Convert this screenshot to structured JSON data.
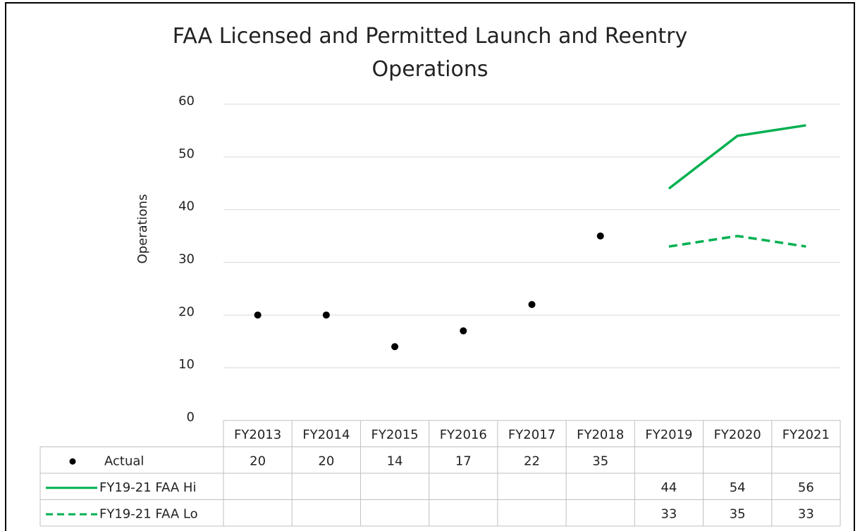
{
  "chart_data": {
    "type": "line",
    "title": "FAA Licensed and Permitted Launch and Reentry Operations",
    "y_label": "Operations",
    "categories": [
      "FY2013",
      "FY2014",
      "FY2015",
      "FY2016",
      "FY2017",
      "FY2018",
      "FY2019",
      "FY2020",
      "FY2021"
    ],
    "series": [
      {
        "name": "Actual",
        "color": "#000000",
        "line_style": "none",
        "marker": true,
        "values": [
          20,
          20,
          14,
          17,
          22,
          35,
          null,
          null,
          null
        ]
      },
      {
        "name": "FY19-21 FAA Hi",
        "color": "#00b050",
        "line_style": "solid",
        "marker": false,
        "values": [
          null,
          null,
          null,
          null,
          null,
          null,
          44,
          54,
          56
        ]
      },
      {
        "name": "FY19-21 FAA Lo",
        "color": "#00b050",
        "line_style": "dashed",
        "marker": false,
        "values": [
          null,
          null,
          null,
          null,
          null,
          null,
          33,
          35,
          33
        ]
      }
    ],
    "ylim": [
      0,
      60
    ],
    "yticks": [
      0,
      10,
      20,
      30,
      40,
      50,
      60
    ],
    "grid": true,
    "data_table": true
  }
}
